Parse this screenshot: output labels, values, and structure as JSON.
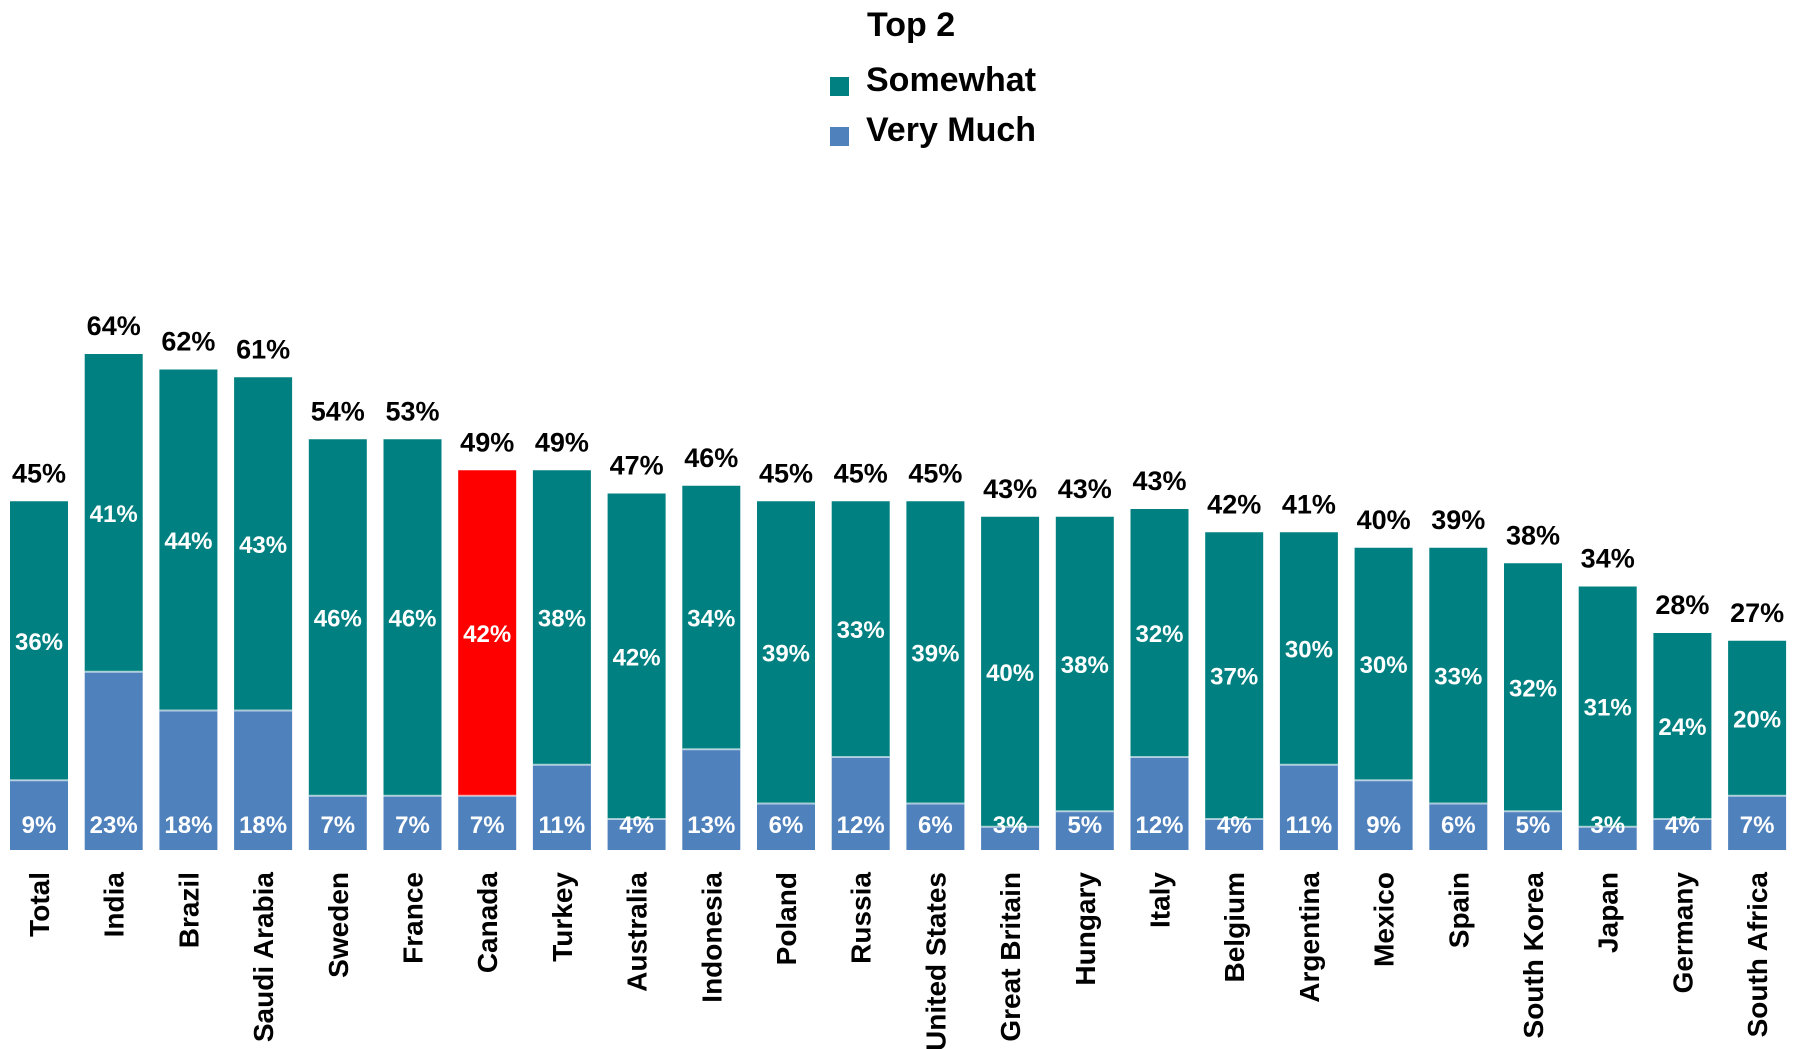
{
  "legend": {
    "title": "Top 2",
    "items": [
      {
        "label": "Somewhat",
        "color": "#008080"
      },
      {
        "label": "Very Much",
        "color": "#4F81BD"
      }
    ]
  },
  "colors": {
    "somewhat": "#008080",
    "very_much": "#4F81BD",
    "highlight": "#FF0000"
  },
  "chart_data": {
    "type": "bar",
    "stacked": true,
    "highlight": "Canada",
    "categories": [
      "Total",
      "India",
      "Brazil",
      "Saudi Arabia",
      "Sweden",
      "France",
      "Canada",
      "Turkey",
      "Australia",
      "Indonesia",
      "Poland",
      "Russia",
      "United States",
      "Great Britain",
      "Hungary",
      "Italy",
      "Belgium",
      "Argentina",
      "Mexico",
      "Spain",
      "South Korea",
      "Japan",
      "Germany",
      "South Africa"
    ],
    "series": [
      {
        "name": "Very Much",
        "values": [
          9,
          23,
          18,
          18,
          7,
          7,
          7,
          11,
          4,
          13,
          6,
          12,
          6,
          3,
          5,
          12,
          4,
          11,
          9,
          6,
          5,
          3,
          4,
          7
        ]
      },
      {
        "name": "Somewhat",
        "values": [
          36,
          41,
          44,
          43,
          46,
          46,
          42,
          38,
          42,
          34,
          39,
          33,
          39,
          40,
          38,
          32,
          37,
          30,
          30,
          33,
          32,
          31,
          24,
          20
        ]
      }
    ],
    "totals": [
      45,
      64,
      62,
      61,
      54,
      53,
      49,
      49,
      47,
      46,
      45,
      45,
      45,
      43,
      43,
      43,
      42,
      41,
      40,
      39,
      38,
      34,
      28,
      27
    ],
    "legend_title": "Top 2",
    "value_format": "percent"
  }
}
